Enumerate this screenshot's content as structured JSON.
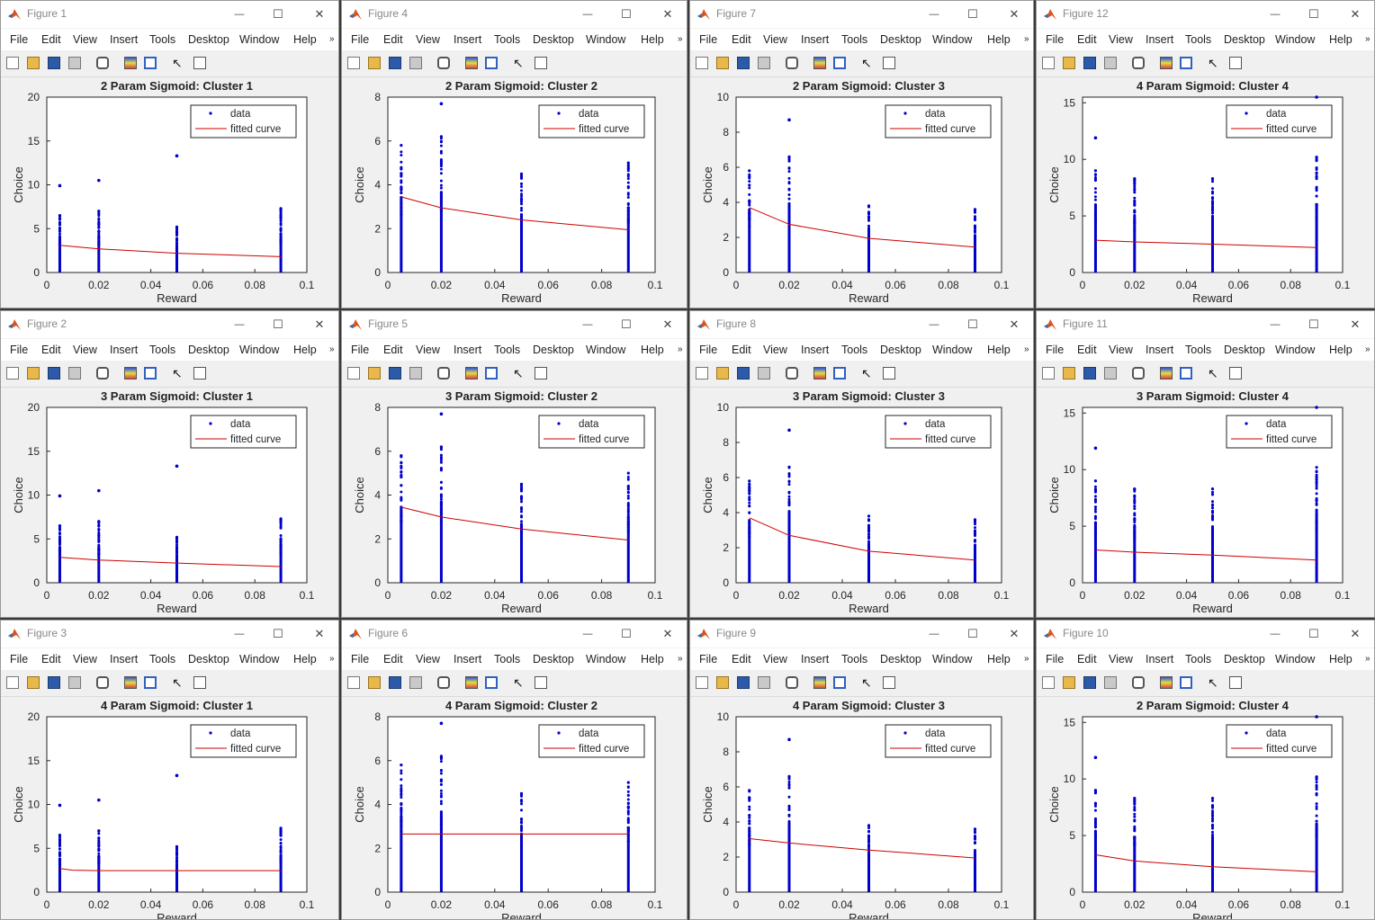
{
  "menu_items": [
    "File",
    "Edit",
    "View",
    "Insert",
    "Tools",
    "Desktop",
    "Window",
    "Help"
  ],
  "window_buttons": {
    "minimize": "—",
    "maximize": "☐",
    "close": "✕"
  },
  "legend": {
    "data": "data",
    "fit": "fitted curve"
  },
  "colors": {
    "data": "#0000cc",
    "fit": "#cc0000",
    "axes_bg": "#ffffff",
    "window_bg": "#f0f0f0"
  },
  "toolbar_icons": [
    "new-figure-icon",
    "open-file-icon",
    "save-icon",
    "print-icon",
    "link-icon",
    "colorbar-icon",
    "legend-icon",
    "pointer-icon",
    "property-editor-icon"
  ],
  "figures": [
    {
      "window_title": "Figure 1",
      "chart_data": {
        "type": "scatter",
        "title": "2 Param Sigmoid: Cluster 1",
        "xlabel": "Reward",
        "ylabel": "Choice",
        "xlim": [
          0,
          0.1
        ],
        "ylim": [
          0,
          20
        ],
        "xticks": [
          "0",
          "0.02",
          "0.04",
          "0.06",
          "0.08",
          "0.1"
        ],
        "yticks": [
          "0",
          "5",
          "10",
          "15",
          "20"
        ],
        "legend_position": "top-right",
        "x_groups": [
          0.005,
          0.02,
          0.05,
          0.09
        ],
        "group_max": [
          6.5,
          7,
          5.2,
          7.3
        ],
        "outliers": [
          [
            0.005,
            9.9
          ],
          [
            0.02,
            10.5
          ],
          [
            0.05,
            13.3
          ]
        ],
        "fit": {
          "x": [
            0.005,
            0.02,
            0.05,
            0.09
          ],
          "y": [
            3.1,
            2.7,
            2.2,
            1.8
          ]
        }
      }
    },
    {
      "window_title": "Figure 4",
      "chart_data": {
        "type": "scatter",
        "title": "2 Param Sigmoid: Cluster 2",
        "xlabel": "Reward",
        "ylabel": "Choice",
        "xlim": [
          0,
          0.1
        ],
        "ylim": [
          0,
          8
        ],
        "xticks": [
          "0",
          "0.02",
          "0.04",
          "0.06",
          "0.08",
          "0.1"
        ],
        "yticks": [
          "0",
          "2",
          "4",
          "6",
          "8"
        ],
        "legend_position": "top-right",
        "x_groups": [
          0.005,
          0.02,
          0.05,
          0.09
        ],
        "group_max": [
          5.8,
          6.2,
          4.5,
          5
        ],
        "outliers": [
          [
            0.02,
            7.7
          ]
        ],
        "fit": {
          "x": [
            0.005,
            0.02,
            0.05,
            0.09
          ],
          "y": [
            3.45,
            2.95,
            2.4,
            1.95
          ]
        }
      }
    },
    {
      "window_title": "Figure 7",
      "chart_data": {
        "type": "scatter",
        "title": "2 Param Sigmoid: Cluster 3",
        "xlabel": "Reward",
        "ylabel": "Choice",
        "xlim": [
          0,
          0.1
        ],
        "ylim": [
          0,
          10
        ],
        "xticks": [
          "0",
          "0.02",
          "0.04",
          "0.06",
          "0.08",
          "0.1"
        ],
        "yticks": [
          "0",
          "2",
          "4",
          "6",
          "8",
          "10"
        ],
        "legend_position": "top-right",
        "x_groups": [
          0.005,
          0.02,
          0.05,
          0.09
        ],
        "group_max": [
          5.8,
          6.6,
          3.8,
          3.6
        ],
        "outliers": [
          [
            0.02,
            8.7
          ]
        ],
        "fit": {
          "x": [
            0.005,
            0.02,
            0.05,
            0.09
          ],
          "y": [
            3.7,
            2.75,
            1.95,
            1.45
          ]
        }
      }
    },
    {
      "window_title": "Figure 12",
      "chart_data": {
        "type": "scatter",
        "title": "4 Param Sigmoid: Cluster 4",
        "xlabel": "Reward",
        "ylabel": "Choice",
        "xlim": [
          0,
          0.1
        ],
        "ylim": [
          0,
          15.5
        ],
        "xticks": [
          "0",
          "0.02",
          "0.04",
          "0.06",
          "0.08",
          "0.1"
        ],
        "yticks": [
          "0",
          "5",
          "10",
          "15"
        ],
        "legend_position": "top-right",
        "x_groups": [
          0.005,
          0.02,
          0.05,
          0.09
        ],
        "group_max": [
          9,
          8.3,
          8.3,
          10.2
        ],
        "outliers": [
          [
            0.005,
            11.9
          ],
          [
            0.09,
            15.5
          ]
        ],
        "fit": {
          "x": [
            0.005,
            0.02,
            0.05,
            0.09
          ],
          "y": [
            2.85,
            2.7,
            2.5,
            2.2
          ]
        }
      }
    },
    {
      "window_title": "Figure 2",
      "chart_data": {
        "type": "scatter",
        "title": "3 Param Sigmoid: Cluster 1",
        "xlabel": "Reward",
        "ylabel": "Choice",
        "xlim": [
          0,
          0.1
        ],
        "ylim": [
          0,
          20
        ],
        "xticks": [
          "0",
          "0.02",
          "0.04",
          "0.06",
          "0.08",
          "0.1"
        ],
        "yticks": [
          "0",
          "5",
          "10",
          "15",
          "20"
        ],
        "legend_position": "top-right",
        "x_groups": [
          0.005,
          0.02,
          0.05,
          0.09
        ],
        "group_max": [
          6.5,
          7,
          5.2,
          7.3
        ],
        "outliers": [
          [
            0.005,
            9.9
          ],
          [
            0.02,
            10.5
          ],
          [
            0.05,
            13.3
          ]
        ],
        "fit": {
          "x": [
            0.005,
            0.02,
            0.05,
            0.09
          ],
          "y": [
            2.9,
            2.6,
            2.25,
            1.85
          ]
        }
      }
    },
    {
      "window_title": "Figure 5",
      "chart_data": {
        "type": "scatter",
        "title": "3 Param Sigmoid: Cluster 2",
        "xlabel": "Reward",
        "ylabel": "Choice",
        "xlim": [
          0,
          0.1
        ],
        "ylim": [
          0,
          8
        ],
        "xticks": [
          "0",
          "0.02",
          "0.04",
          "0.06",
          "0.08",
          "0.1"
        ],
        "yticks": [
          "0",
          "2",
          "4",
          "6",
          "8"
        ],
        "legend_position": "top-right",
        "x_groups": [
          0.005,
          0.02,
          0.05,
          0.09
        ],
        "group_max": [
          5.8,
          6.2,
          4.5,
          5
        ],
        "outliers": [
          [
            0.02,
            7.7
          ]
        ],
        "fit": {
          "x": [
            0.005,
            0.02,
            0.05,
            0.09
          ],
          "y": [
            3.45,
            3.0,
            2.45,
            1.95
          ]
        }
      }
    },
    {
      "window_title": "Figure 8",
      "chart_data": {
        "type": "scatter",
        "title": "3 Param Sigmoid: Cluster 3",
        "xlabel": "Reward",
        "ylabel": "Choice",
        "xlim": [
          0,
          0.1
        ],
        "ylim": [
          0,
          10
        ],
        "xticks": [
          "0",
          "0.02",
          "0.04",
          "0.06",
          "0.08",
          "0.1"
        ],
        "yticks": [
          "0",
          "2",
          "4",
          "6",
          "8",
          "10"
        ],
        "legend_position": "top-right",
        "x_groups": [
          0.005,
          0.02,
          0.05,
          0.09
        ],
        "group_max": [
          5.8,
          6.6,
          3.8,
          3.6
        ],
        "outliers": [
          [
            0.02,
            8.7
          ]
        ],
        "fit": {
          "x": [
            0.005,
            0.02,
            0.05,
            0.09
          ],
          "y": [
            3.7,
            2.7,
            1.8,
            1.3
          ]
        }
      }
    },
    {
      "window_title": "Figure 11",
      "chart_data": {
        "type": "scatter",
        "title": "3 Param Sigmoid: Cluster 4",
        "xlabel": "Reward",
        "ylabel": "Choice",
        "xlim": [
          0,
          0.1
        ],
        "ylim": [
          0,
          15.5
        ],
        "xticks": [
          "0",
          "0.02",
          "0.04",
          "0.06",
          "0.08",
          "0.1"
        ],
        "yticks": [
          "0",
          "5",
          "10",
          "15"
        ],
        "legend_position": "top-right",
        "x_groups": [
          0.005,
          0.02,
          0.05,
          0.09
        ],
        "group_max": [
          9,
          8.3,
          8.3,
          10.2
        ],
        "outliers": [
          [
            0.005,
            11.9
          ],
          [
            0.09,
            15.5
          ]
        ],
        "fit": {
          "x": [
            0.005,
            0.02,
            0.05,
            0.09
          ],
          "y": [
            2.9,
            2.7,
            2.45,
            2.0
          ]
        }
      }
    },
    {
      "window_title": "Figure 3",
      "chart_data": {
        "type": "scatter",
        "title": "4 Param Sigmoid: Cluster 1",
        "xlabel": "Reward",
        "ylabel": "Choice",
        "xlim": [
          0,
          0.1
        ],
        "ylim": [
          0,
          20
        ],
        "xticks": [
          "0",
          "0.02",
          "0.04",
          "0.06",
          "0.08",
          "0.1"
        ],
        "yticks": [
          "0",
          "5",
          "10",
          "15",
          "20"
        ],
        "legend_position": "top-right",
        "x_groups": [
          0.005,
          0.02,
          0.05,
          0.09
        ],
        "group_max": [
          6.5,
          7,
          5.2,
          7.3
        ],
        "outliers": [
          [
            0.005,
            9.9
          ],
          [
            0.02,
            10.5
          ],
          [
            0.05,
            13.3
          ]
        ],
        "fit": {
          "x": [
            0.005,
            0.01,
            0.02,
            0.05,
            0.09
          ],
          "y": [
            2.7,
            2.5,
            2.45,
            2.45,
            2.45
          ]
        }
      }
    },
    {
      "window_title": "Figure 6",
      "chart_data": {
        "type": "scatter",
        "title": "4 Param Sigmoid: Cluster 2",
        "xlabel": "Reward",
        "ylabel": "Choice",
        "xlim": [
          0,
          0.1
        ],
        "ylim": [
          0,
          8
        ],
        "xticks": [
          "0",
          "0.02",
          "0.04",
          "0.06",
          "0.08",
          "0.1"
        ],
        "yticks": [
          "0",
          "2",
          "4",
          "6",
          "8"
        ],
        "legend_position": "top-right",
        "x_groups": [
          0.005,
          0.02,
          0.05,
          0.09
        ],
        "group_max": [
          5.8,
          6.2,
          4.5,
          5
        ],
        "outliers": [
          [
            0.02,
            7.7
          ]
        ],
        "fit": {
          "x": [
            0.005,
            0.09
          ],
          "y": [
            2.65,
            2.65
          ]
        }
      }
    },
    {
      "window_title": "Figure 9",
      "chart_data": {
        "type": "scatter",
        "title": "4 Param Sigmoid: Cluster 3",
        "xlabel": "Reward",
        "ylabel": "Choice",
        "xlim": [
          0,
          0.1
        ],
        "ylim": [
          0,
          10
        ],
        "xticks": [
          "0",
          "0.02",
          "0.04",
          "0.06",
          "0.08",
          "0.1"
        ],
        "yticks": [
          "0",
          "2",
          "4",
          "6",
          "8",
          "10"
        ],
        "legend_position": "top-right",
        "x_groups": [
          0.005,
          0.02,
          0.05,
          0.09
        ],
        "group_max": [
          5.8,
          6.6,
          3.8,
          3.6
        ],
        "outliers": [
          [
            0.02,
            8.7
          ]
        ],
        "fit": {
          "x": [
            0.005,
            0.02,
            0.05,
            0.09
          ],
          "y": [
            3.05,
            2.8,
            2.4,
            1.95
          ]
        }
      }
    },
    {
      "window_title": "Figure 10",
      "chart_data": {
        "type": "scatter",
        "title": "2 Param Sigmoid: Cluster 4",
        "xlabel": "Reward",
        "ylabel": "Choice",
        "xlim": [
          0,
          0.1
        ],
        "ylim": [
          0,
          15.5
        ],
        "xticks": [
          "0",
          "0.02",
          "0.04",
          "0.06",
          "0.08",
          "0.1"
        ],
        "yticks": [
          "0",
          "5",
          "10",
          "15"
        ],
        "legend_position": "top-right",
        "x_groups": [
          0.005,
          0.02,
          0.05,
          0.09
        ],
        "group_max": [
          9,
          8.3,
          8.3,
          10.2
        ],
        "outliers": [
          [
            0.005,
            11.9
          ],
          [
            0.09,
            15.5
          ]
        ],
        "fit": {
          "x": [
            0.005,
            0.02,
            0.05,
            0.09
          ],
          "y": [
            3.3,
            2.75,
            2.25,
            1.8
          ]
        }
      }
    }
  ]
}
